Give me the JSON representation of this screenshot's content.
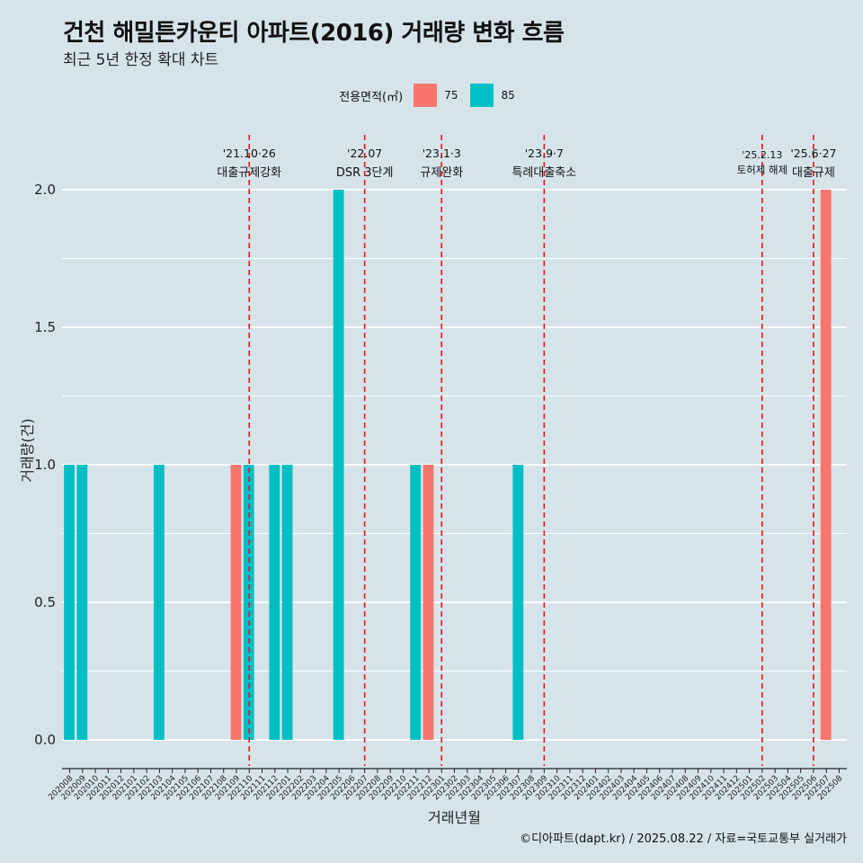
{
  "title": "건천 해밀튼카운티 아파트(2016) 거래량 변화 흐름",
  "subtitle": "최근 5년 한정 확대 차트",
  "legend": {
    "title": "전용면적(㎡)",
    "items": [
      {
        "label": "75",
        "color": "#f8766d"
      },
      {
        "label": "85",
        "color": "#00bfc4"
      }
    ]
  },
  "caption": "©디아파트(dapt.kr) / 2025.08.22 / 자료=국토교통부 실거래가",
  "chart_data": {
    "type": "bar",
    "xlabel": "거래년월",
    "ylabel": "거래량(건)",
    "ylim": [
      0,
      2
    ],
    "yticks": [
      "0.0",
      "0.5",
      "1.0",
      "1.5",
      "2.0"
    ],
    "categories": [
      "202008",
      "202009",
      "202010",
      "202011",
      "202012",
      "202101",
      "202102",
      "202103",
      "202104",
      "202105",
      "202106",
      "202107",
      "202108",
      "202109",
      "202110",
      "202111",
      "202112",
      "202201",
      "202202",
      "202203",
      "202204",
      "202205",
      "202206",
      "202207",
      "202208",
      "202209",
      "202210",
      "202211",
      "202212",
      "202301",
      "202302",
      "202303",
      "202304",
      "202305",
      "202306",
      "202307",
      "202308",
      "202309",
      "202310",
      "202311",
      "202312",
      "202401",
      "202402",
      "202403",
      "202404",
      "202405",
      "202406",
      "202407",
      "202408",
      "202409",
      "202410",
      "202411",
      "202412",
      "202501",
      "202502",
      "202503",
      "202504",
      "202505",
      "202506",
      "202507",
      "202508"
    ],
    "series": [
      {
        "name": "75",
        "color": "#f8766d",
        "points": [
          {
            "x": "202109",
            "y": 1
          },
          {
            "x": "202212",
            "y": 1
          },
          {
            "x": "202507",
            "y": 2
          }
        ]
      },
      {
        "name": "85",
        "color": "#00bfc4",
        "points": [
          {
            "x": "202008",
            "y": 1
          },
          {
            "x": "202009",
            "y": 1
          },
          {
            "x": "202103",
            "y": 1
          },
          {
            "x": "202110",
            "y": 1
          },
          {
            "x": "202112",
            "y": 1
          },
          {
            "x": "202201",
            "y": 1
          },
          {
            "x": "202205",
            "y": 2
          },
          {
            "x": "202211",
            "y": 1
          },
          {
            "x": "202307",
            "y": 1
          }
        ]
      }
    ],
    "vlines": [
      {
        "x": "202110",
        "label1": "'21.10·26",
        "label2": "대출규제강화"
      },
      {
        "x": "202207",
        "label1": "'22.07",
        "label2": "DSR 3단계"
      },
      {
        "x": "202301",
        "label1": "'23.1·3",
        "label2": "규제완화"
      },
      {
        "x": "202309",
        "label1": "'23.9·7",
        "label2": "특례대출축소"
      },
      {
        "x": "202502",
        "label1": "'25.2.13",
        "label2": "토허제 해제"
      },
      {
        "x": "202506",
        "label1": "'25.6·27",
        "label2": "대출규제"
      }
    ]
  }
}
